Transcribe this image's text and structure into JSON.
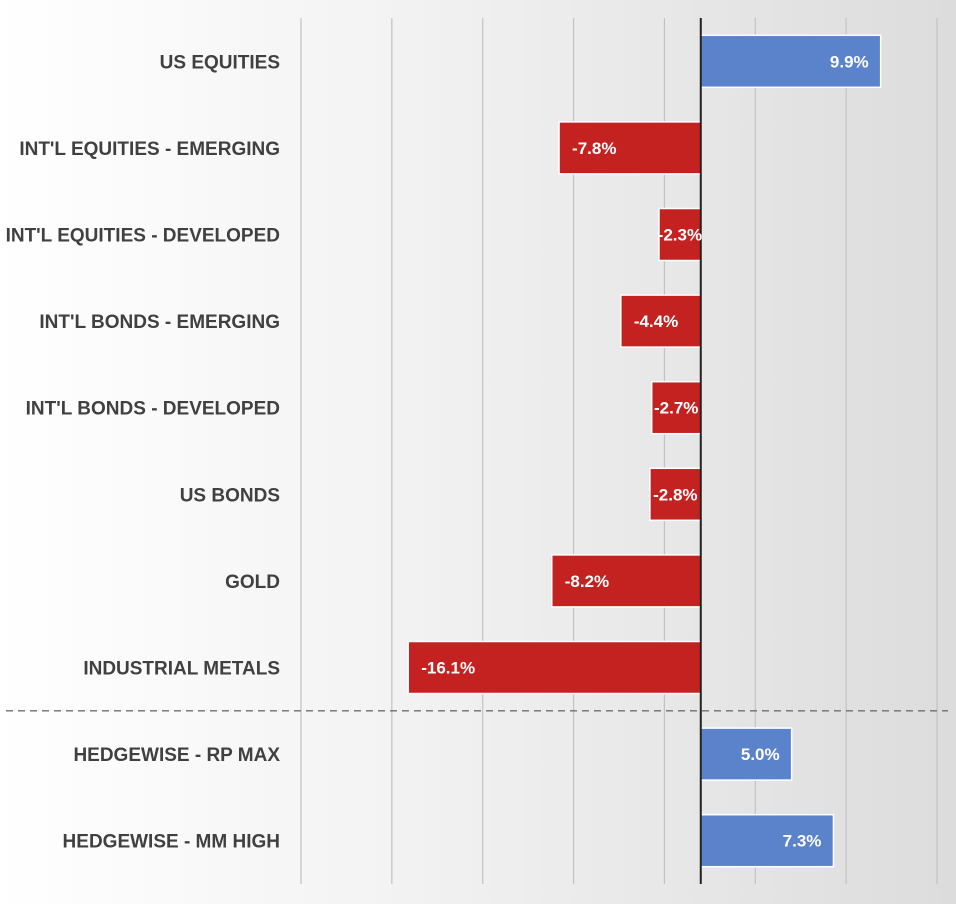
{
  "chart_data": {
    "type": "bar",
    "orientation": "horizontal",
    "categories": [
      "US EQUITIES",
      "INT'L EQUITIES - EMERGING",
      "INT'L EQUITIES - DEVELOPED",
      "INT'L BONDS - EMERGING",
      "INT'L BONDS - DEVELOPED",
      "US BONDS",
      "GOLD",
      "INDUSTRIAL METALS",
      "HEDGEWISE - RP MAX",
      "HEDGEWISE - MM HIGH"
    ],
    "values": [
      9.9,
      -7.8,
      -2.3,
      -4.4,
      -2.7,
      -2.8,
      -8.2,
      -16.1,
      5.0,
      7.3
    ],
    "data_labels": [
      "9.9%",
      "-7.8%",
      "-2.3%",
      "-4.4%",
      "-2.7%",
      "-2.8%",
      "-8.2%",
      "-16.1%",
      "5.0%",
      "7.3%"
    ],
    "value_unit": "%",
    "xlim": [
      -22,
      13
    ],
    "gridlines_at": [
      -22,
      -17,
      -12,
      -7,
      -2,
      3,
      8,
      13
    ],
    "separator_after_index": 7,
    "grid": true,
    "colors": {
      "positive": "#5b83cc",
      "negative": "#c42221",
      "grid": "#c2c2c2",
      "axis": "#222222",
      "separator": "#6f6f6f"
    }
  }
}
